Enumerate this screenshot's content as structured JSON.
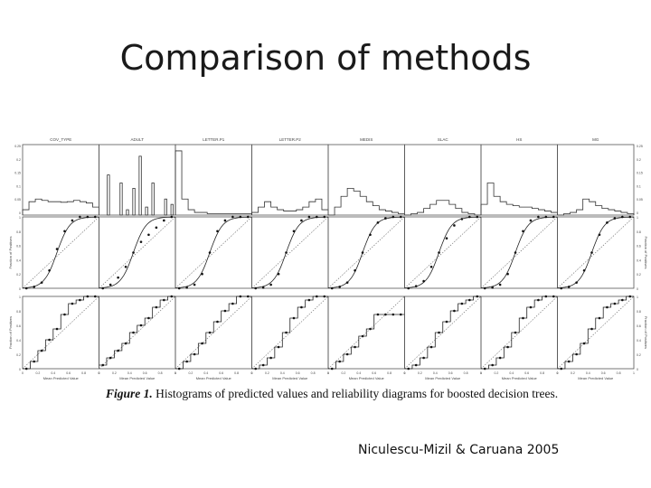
{
  "slide": {
    "title": "Comparison of methods",
    "credit": "Niculescu-Mizil & Caruana 2005"
  },
  "figure": {
    "caption_label": "Figure 1.",
    "caption_text": "Histograms of predicted values and reliability diagrams for boosted decision trees.",
    "row_labels": {
      "histogram_left_ticks": [
        "0.25",
        "0.2",
        "0.15",
        "0.1",
        "0.05",
        "0"
      ],
      "histogram_right_ticks": [
        "0.25",
        "0.2",
        "0.15",
        "0.1",
        "0.05",
        "0"
      ],
      "reliability_ticks": [
        "1",
        "0.8",
        "0.6",
        "0.4",
        "0.2",
        "0"
      ],
      "x_ticks": [
        "0",
        "0.2",
        "0.4",
        "0.6",
        "0.8",
        "1"
      ],
      "x_axis_label": "Mean Predicted Value",
      "y_axis_label": "Fraction of Positives"
    }
  },
  "chart_data": [
    {
      "type": "bar",
      "role": "histograms",
      "panels": [
        {
          "name": "COV_TYPE",
          "values": [
            0.02,
            0.05,
            0.06,
            0.055,
            0.05,
            0.05,
            0.048,
            0.05,
            0.055,
            0.05,
            0.045,
            0.03
          ]
        },
        {
          "name": "ADULT",
          "values": [
            0.0,
            0.15,
            0.0,
            0.12,
            0.02,
            0.1,
            0.22,
            0.03,
            0.12,
            0.0,
            0.06,
            0.04
          ]
        },
        {
          "name": "LETTER.P1",
          "values": [
            0.24,
            0.06,
            0.02,
            0.01,
            0.01,
            0.005,
            0.005,
            0.005,
            0.005,
            0.005,
            0.005,
            0.005
          ]
        },
        {
          "name": "LETTER.P2",
          "values": [
            0.01,
            0.03,
            0.05,
            0.03,
            0.02,
            0.015,
            0.015,
            0.02,
            0.03,
            0.05,
            0.06,
            0.02
          ]
        },
        {
          "name": "MEDIS",
          "values": [
            0.0,
            0.03,
            0.07,
            0.1,
            0.09,
            0.07,
            0.05,
            0.035,
            0.02,
            0.015,
            0.01,
            0.005
          ]
        },
        {
          "name": "SLAC",
          "values": [
            0.0,
            0.005,
            0.01,
            0.025,
            0.04,
            0.055,
            0.055,
            0.04,
            0.025,
            0.01,
            0.005,
            0.0
          ]
        },
        {
          "name": "HS",
          "values": [
            0.04,
            0.12,
            0.07,
            0.05,
            0.04,
            0.035,
            0.03,
            0.03,
            0.025,
            0.02,
            0.015,
            0.01
          ]
        },
        {
          "name": "MG",
          "values": [
            0.0,
            0.005,
            0.01,
            0.02,
            0.06,
            0.05,
            0.035,
            0.025,
            0.02,
            0.015,
            0.01,
            0.005
          ]
        }
      ]
    },
    {
      "type": "line",
      "role": "reliability diagrams (middle row)",
      "x": [
        0.05,
        0.15,
        0.25,
        0.35,
        0.45,
        0.55,
        0.65,
        0.75,
        0.85,
        0.95
      ],
      "panels": [
        {
          "name": "COV_TYPE",
          "values": [
            0.0,
            0.02,
            0.08,
            0.25,
            0.55,
            0.8,
            0.95,
            1.0,
            1.0,
            1.0
          ]
        },
        {
          "name": "ADULT",
          "values": [
            0.0,
            0.05,
            0.15,
            0.3,
            0.5,
            0.65,
            0.75,
            0.85,
            0.95,
            1.0
          ]
        },
        {
          "name": "LETTER.P1",
          "values": [
            0.0,
            0.01,
            0.05,
            0.2,
            0.5,
            0.8,
            0.95,
            1.0,
            1.0,
            1.0
          ]
        },
        {
          "name": "LETTER.P2",
          "values": [
            0.0,
            0.01,
            0.05,
            0.2,
            0.5,
            0.8,
            0.95,
            1.0,
            1.0,
            1.0
          ]
        },
        {
          "name": "MEDIS",
          "values": [
            0.0,
            0.02,
            0.08,
            0.25,
            0.5,
            0.75,
            0.92,
            0.98,
            1.0,
            1.0
          ]
        },
        {
          "name": "SLAC",
          "values": [
            0.0,
            0.03,
            0.1,
            0.3,
            0.5,
            0.7,
            0.88,
            0.97,
            1.0,
            1.0
          ]
        },
        {
          "name": "HS",
          "values": [
            0.0,
            0.01,
            0.05,
            0.2,
            0.5,
            0.8,
            0.95,
            1.0,
            1.0,
            1.0
          ]
        },
        {
          "name": "MG",
          "values": [
            0.0,
            0.02,
            0.08,
            0.25,
            0.5,
            0.75,
            0.92,
            0.98,
            1.0,
            1.0
          ]
        }
      ]
    },
    {
      "type": "line",
      "role": "reliability diagrams (bottom row)",
      "x": [
        0.05,
        0.15,
        0.25,
        0.35,
        0.45,
        0.55,
        0.65,
        0.75,
        0.85,
        0.95
      ],
      "panels": [
        {
          "name": "COV_TYPE",
          "values": [
            0.0,
            0.1,
            0.25,
            0.4,
            0.55,
            0.75,
            0.9,
            0.95,
            1.0,
            1.0
          ]
        },
        {
          "name": "ADULT",
          "values": [
            0.05,
            0.15,
            0.25,
            0.35,
            0.5,
            0.6,
            0.7,
            0.85,
            0.95,
            1.0
          ]
        },
        {
          "name": "LETTER.P1",
          "values": [
            0.0,
            0.1,
            0.2,
            0.35,
            0.5,
            0.65,
            0.8,
            0.9,
            1.0,
            1.0
          ]
        },
        {
          "name": "LETTER.P2",
          "values": [
            0.0,
            0.05,
            0.15,
            0.3,
            0.5,
            0.7,
            0.85,
            0.95,
            1.0,
            1.0
          ]
        },
        {
          "name": "MEDIS",
          "values": [
            0.0,
            0.1,
            0.2,
            0.3,
            0.45,
            0.55,
            0.75,
            0.75,
            0.75,
            0.75
          ]
        },
        {
          "name": "SLAC",
          "values": [
            0.0,
            0.05,
            0.15,
            0.3,
            0.5,
            0.65,
            0.8,
            0.9,
            0.95,
            1.0
          ]
        },
        {
          "name": "HS",
          "values": [
            0.0,
            0.05,
            0.15,
            0.3,
            0.5,
            0.7,
            0.85,
            0.95,
            1.0,
            1.0
          ]
        },
        {
          "name": "MG",
          "values": [
            0.0,
            0.1,
            0.2,
            0.35,
            0.55,
            0.7,
            0.85,
            0.9,
            0.95,
            1.0
          ]
        }
      ]
    }
  ]
}
